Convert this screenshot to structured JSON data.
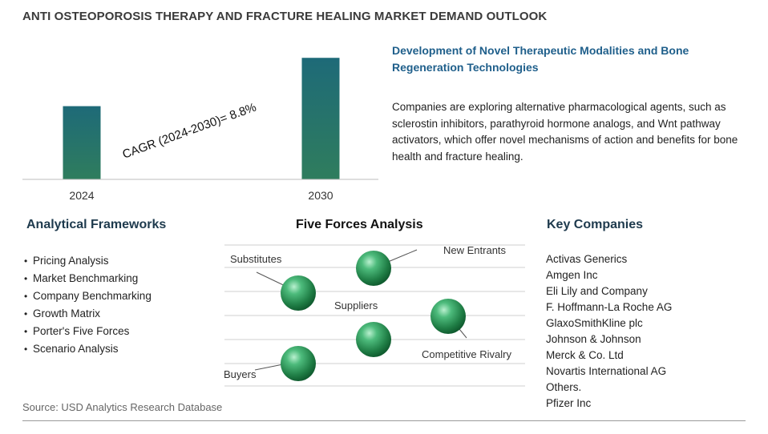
{
  "title": "ANTI OSTEOPOROSIS THERAPY AND FRACTURE HEALING MARKET DEMAND OUTLOOK",
  "chart_data": {
    "type": "bar",
    "categories": [
      "2024",
      "2030"
    ],
    "values": [
      1.0,
      1.66
    ],
    "annotation": "CAGR (2024-2030)=  8.8%",
    "ylim": [
      0,
      1.75
    ],
    "grid": false,
    "colors": {
      "bar_top": "#1e6a78",
      "bar_bottom": "#2f7d5d"
    }
  },
  "insight": {
    "title": "Development of Novel Therapeutic Modalities and Bone Regeneration Technologies",
    "text": "Companies are exploring alternative pharmacological agents, such as sclerostin inhibitors, parathyroid hormone analogs, and Wnt pathway activators, which offer novel mechanisms of action and benefits for bone health and fracture healing."
  },
  "frameworks": {
    "heading": "Analytical Frameworks",
    "bullet": "•",
    "items": [
      "Pricing Analysis",
      "Market Benchmarking",
      "Company Benchmarking",
      "Growth Matrix",
      "Porter's Five Forces",
      "Scenario Analysis"
    ]
  },
  "five_forces": {
    "heading": "Five Forces Analysis",
    "labels": {
      "substitutes": "Substitutes",
      "new_entrants": "New Entrants",
      "suppliers": "Suppliers",
      "competitive_rivalry": "Competitive Rivalry",
      "buyers": "Buyers"
    },
    "sphere_color": "#2e9a5c"
  },
  "companies": {
    "heading": "Key Companies",
    "items": [
      "Activas Generics",
      "Amgen Inc",
      "Eli Lily and Company",
      "F. Hoffmann-La Roche AG",
      "GlaxoSmithKline plc",
      "Johnson & Johnson",
      "Merck & Co. Ltd",
      "Novartis International AG",
      "Others.",
      "Pfizer Inc"
    ]
  },
  "source": "Source: USD Analytics Research Database"
}
